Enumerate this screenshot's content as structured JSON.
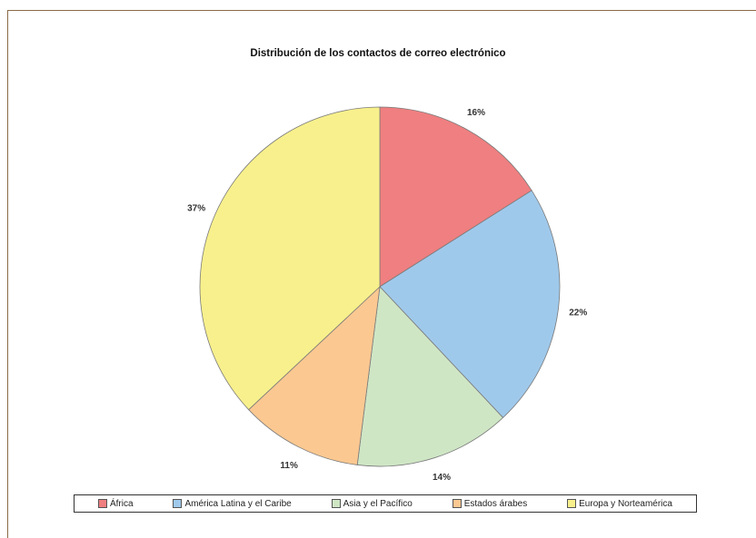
{
  "chart_data": {
    "type": "pie",
    "title": "Distribución de los contactos de correo electrónico",
    "categories": [
      "África",
      "América Latina y el Caribe",
      "Asia y el Pacífico",
      "Estados árabes",
      "Europa y Norteamérica"
    ],
    "values": [
      16,
      22,
      14,
      11,
      37
    ],
    "data_labels": [
      "16%",
      "22%",
      "14%",
      "11%",
      "37%"
    ],
    "colors": [
      "#ef7f80",
      "#9fc9eb",
      "#cfe6c5",
      "#fbc891",
      "#f8f08c"
    ],
    "legend": "bottom"
  }
}
